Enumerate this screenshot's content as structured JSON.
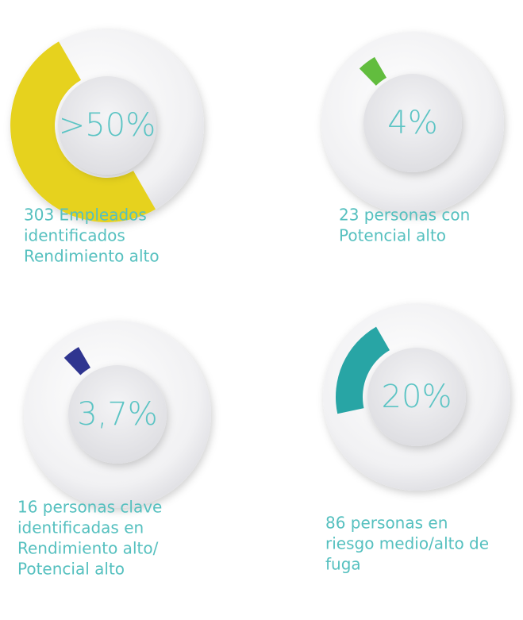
{
  "chart_data": [
    {
      "type": "donut",
      "values": [
        50
      ],
      "value_labels": [
        ">50%"
      ],
      "color": "#e6d21e",
      "caption": [
        "303 Empleados",
        "identificados",
        "Rendimiento alto"
      ]
    },
    {
      "type": "donut",
      "values": [
        4
      ],
      "value_labels": [
        "4%"
      ],
      "color": "#62bd3e",
      "caption": [
        "23 personas con",
        "Potencial alto"
      ]
    },
    {
      "type": "donut",
      "values": [
        3.7
      ],
      "value_labels": [
        "3,7%"
      ],
      "color": "#2f3590",
      "caption": [
        "16 personas clave",
        "identificadas en",
        "Rendimiento alto/",
        "Potencial alto"
      ]
    },
    {
      "type": "donut",
      "values": [
        20
      ],
      "value_labels": [
        "20%"
      ],
      "color": "#28a5a5",
      "caption": [
        "86 personas en",
        "riesgo medio/alto de",
        "fuga"
      ]
    }
  ]
}
